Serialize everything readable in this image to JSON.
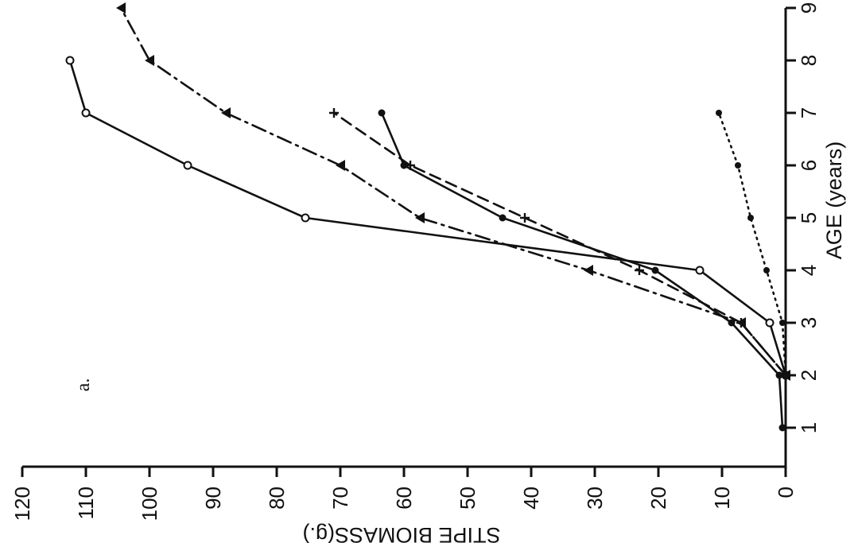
{
  "chart_data": {
    "type": "line",
    "panel_label": "a.",
    "xlabel": "AGE (years)",
    "ylabel": "STIPE BIOMASS(g.)",
    "x_ticks": [
      "1",
      "2",
      "3",
      "4",
      "5",
      "6",
      "7",
      "8",
      "9"
    ],
    "y_ticks": [
      "0",
      "10",
      "20",
      "30",
      "40",
      "50",
      "60",
      "70",
      "80",
      "90",
      "100",
      "110",
      "120"
    ],
    "xlim": [
      0.3,
      9.5
    ],
    "ylim": [
      -1,
      122
    ],
    "grid": false,
    "orientation": "rotated 90 degrees (age axis on the right, biomass axis along the bottom)",
    "series": [
      {
        "marker": "open-circle",
        "line": "solid",
        "x": [
          2,
          3,
          4,
          5,
          6,
          7,
          8
        ],
        "y": [
          0,
          2.5,
          13.5,
          75.5,
          94,
          110,
          112.5
        ]
      },
      {
        "marker": "filled-triangle",
        "line": "dash-dot",
        "x": [
          2,
          3,
          4,
          5,
          6,
          7,
          8,
          9
        ],
        "y": [
          0,
          7,
          31,
          57.5,
          70,
          88,
          100,
          104.5
        ]
      },
      {
        "marker": "plus",
        "line": "dashed",
        "x": [
          2,
          3,
          4,
          5,
          6,
          7
        ],
        "y": [
          0,
          7,
          23,
          41,
          59,
          71
        ]
      },
      {
        "marker": "filled-circle",
        "line": "solid",
        "x": [
          1,
          2,
          3,
          4,
          5,
          6,
          7
        ],
        "y": [
          0.5,
          1,
          8.5,
          20.5,
          44.5,
          60,
          63.5
        ]
      },
      {
        "marker": "filled-circle-small",
        "line": "dotted",
        "x": [
          2,
          3,
          4,
          5,
          6,
          7
        ],
        "y": [
          0,
          0.5,
          3,
          5.5,
          7.5,
          10.5
        ]
      }
    ]
  }
}
